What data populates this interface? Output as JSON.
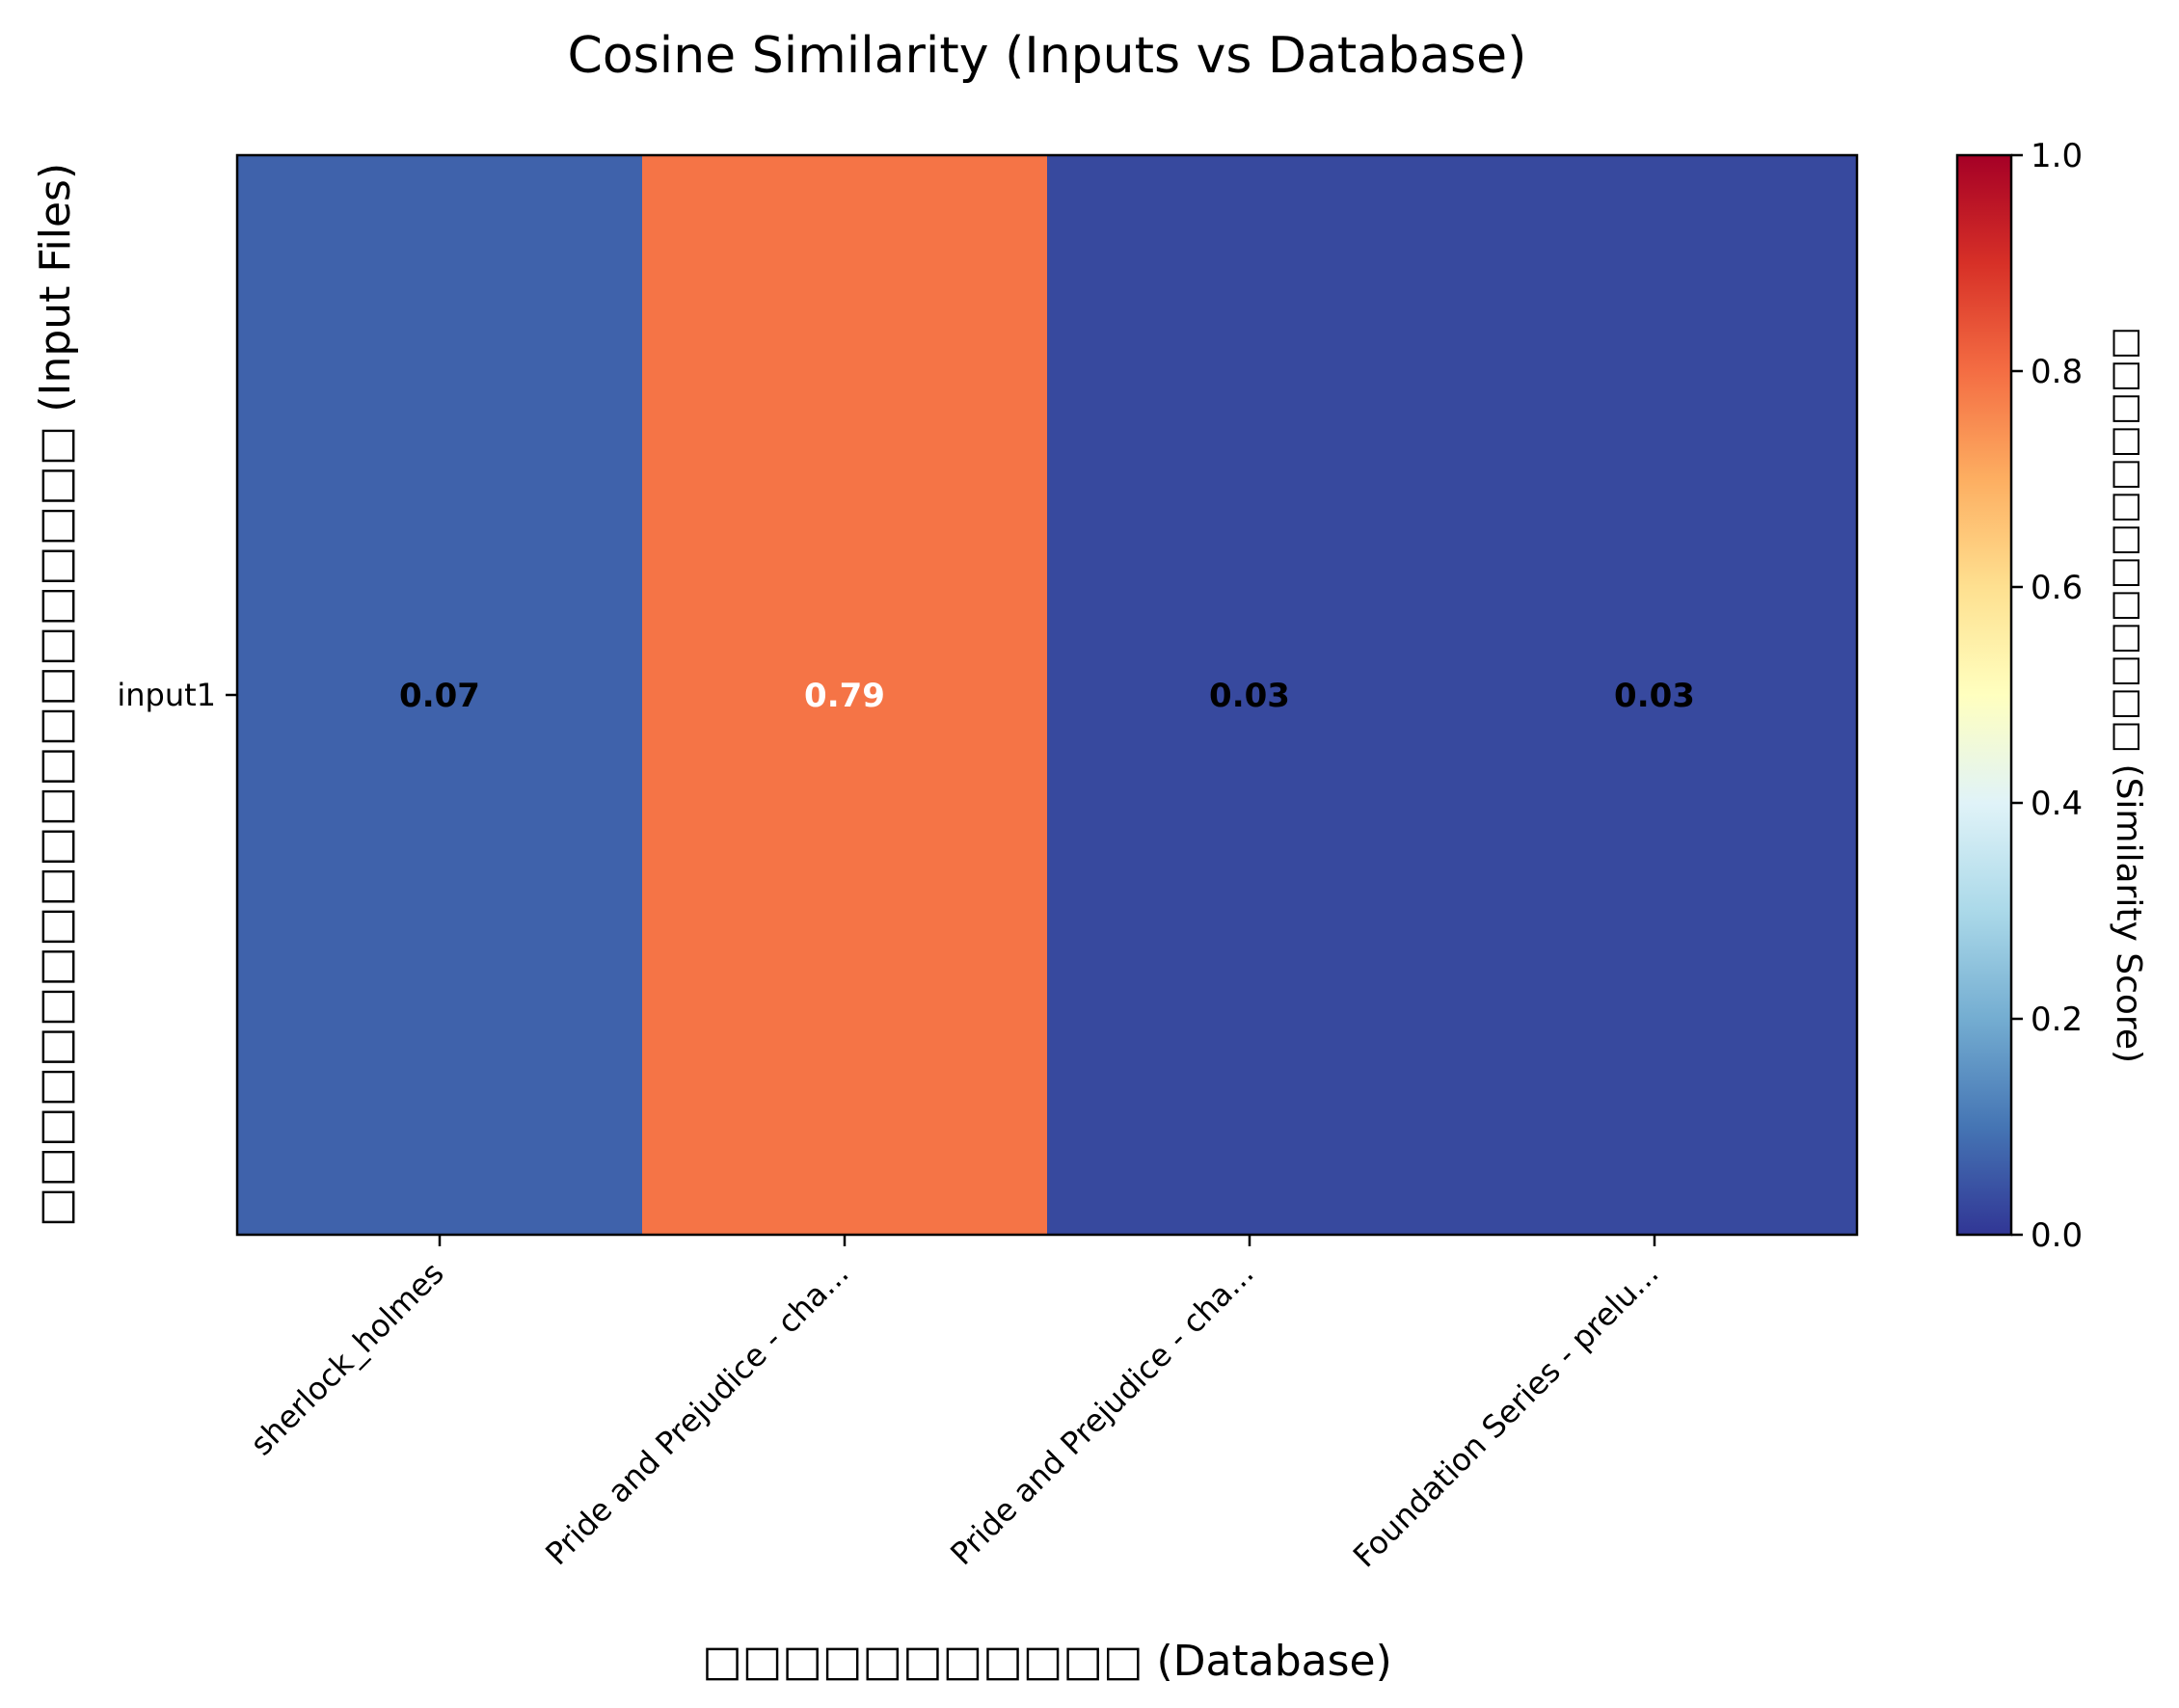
{
  "chart_data": {
    "type": "heatmap",
    "title": "Cosine Similarity (Inputs vs Database)",
    "xlabel": "□□□□□□□□□□□ (Database)",
    "ylabel": "□□□□□□□□□□□□□□□□□□□□ (Input Files)",
    "colorbar_label": "□□□□□□□□□□□□□ (Similarity Score)",
    "colormap": "RdYlBu_r",
    "x_categories": [
      "sherlock_holmes",
      "Pride and Prejudice - cha...",
      "Pride and Prejudice - cha...",
      "Foundation Series - prelu..."
    ],
    "y_categories": [
      "input1"
    ],
    "values": [
      [
        0.07,
        0.79,
        0.03,
        0.03
      ]
    ],
    "cell_labels": [
      [
        "0.07",
        "0.79",
        "0.03",
        "0.03"
      ]
    ],
    "vmin": 0.0,
    "vmax": 1.0,
    "colorbar_ticks": [
      "0.0",
      "0.2",
      "0.4",
      "0.6",
      "0.8",
      "1.0"
    ]
  }
}
